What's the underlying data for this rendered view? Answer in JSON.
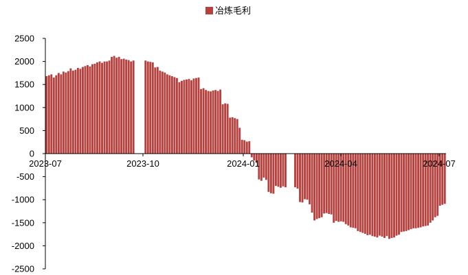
{
  "chart_data": {
    "type": "bar",
    "series": [
      {
        "name": "冶炼毛利",
        "color": "#b5403d",
        "values": [
          1680,
          1700,
          1720,
          1650,
          1700,
          1750,
          1720,
          1780,
          1760,
          1790,
          1850,
          1800,
          1820,
          1860,
          1840,
          1880,
          1900,
          1920,
          1890,
          1940,
          1950,
          1980,
          2000,
          1970,
          2000,
          2000,
          2020,
          2100,
          2120,
          2080,
          2100,
          2050,
          2060,
          2040,
          2030,
          2000,
          2020,
          null,
          null,
          null,
          null,
          2020,
          2000,
          1990,
          1980,
          1870,
          1880,
          1800,
          1780,
          1760,
          1720,
          1700,
          1680,
          1660,
          1640,
          1550,
          1580,
          1600,
          1610,
          1620,
          1590,
          1630,
          1640,
          1650,
          1400,
          1420,
          1380,
          1360,
          1350,
          1370,
          1380,
          1360,
          1390,
          1070,
          1090,
          1080,
          780,
          790,
          770,
          750,
          560,
          300,
          290,
          260,
          270,
          -80,
          -150,
          -200,
          -560,
          -590,
          -520,
          -570,
          -830,
          -860,
          -870,
          -700,
          -720,
          -740,
          -710,
          -730,
          null,
          null,
          null,
          -730,
          -760,
          -1050,
          -1060,
          -990,
          -1000,
          -1100,
          -1280,
          -1450,
          -1420,
          -1400,
          -1380,
          -1300,
          -1290,
          -1310,
          -1320,
          -1500,
          -1460,
          -1480,
          -1470,
          -1480,
          -1530,
          -1560,
          -1600,
          -1610,
          -1620,
          -1680,
          -1700,
          -1720,
          -1740,
          -1770,
          -1760,
          -1790,
          -1800,
          -1820,
          -1780,
          -1800,
          -1830,
          -1790,
          -1850,
          -1830,
          -1820,
          -1780,
          -1760,
          -1700,
          -1690,
          -1680,
          -1660,
          -1640,
          -1620,
          -1620,
          -1610,
          -1600,
          -1580,
          -1570,
          -1560,
          -1500,
          -1450,
          -1380,
          -1350,
          -1130,
          -1110,
          -1090
        ]
      }
    ],
    "x_ticks": [
      "2023-07",
      "2023-10",
      "2024-01",
      "2024-04",
      "2024-07"
    ],
    "y_ticks": [
      "2500",
      "2000",
      "1500",
      "1000",
      "500",
      "0",
      "-500",
      "-1000",
      "-1500",
      "-2000",
      "-2500"
    ],
    "ylim": [
      -2500,
      2500
    ],
    "legend": {
      "position": "top-center"
    },
    "grid": false
  }
}
